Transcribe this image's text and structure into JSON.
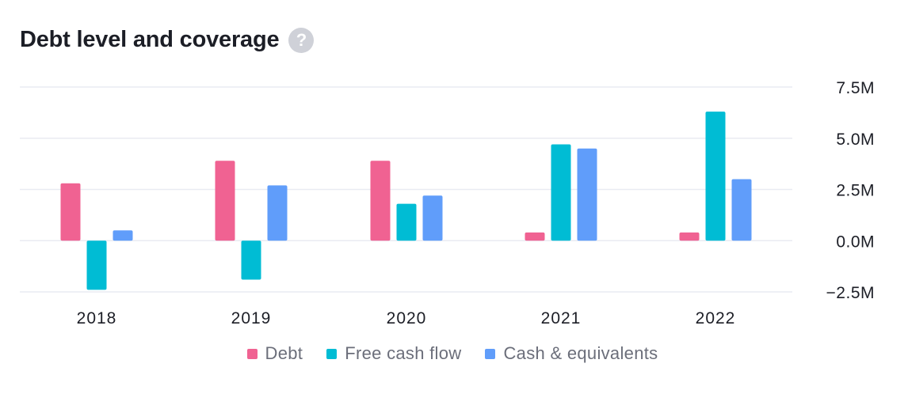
{
  "header": {
    "title": "Debt level and coverage",
    "help_icon_glyph": "?",
    "help_icon": "question-mark-icon"
  },
  "chart_data": {
    "type": "bar",
    "title": "Debt level and coverage",
    "categories": [
      "2018",
      "2019",
      "2020",
      "2021",
      "2022"
    ],
    "series": [
      {
        "name": "Debt",
        "color": "#f06292",
        "values": [
          2.8,
          3.9,
          3.9,
          0.4,
          0.4
        ]
      },
      {
        "name": "Free cash flow",
        "color": "#00bcd4",
        "values": [
          -2.4,
          -1.9,
          1.8,
          4.7,
          6.3
        ]
      },
      {
        "name": "Cash & equivalents",
        "color": "#609dfa",
        "values": [
          0.5,
          2.7,
          2.2,
          4.5,
          3.0
        ]
      }
    ],
    "y_ticks": [
      "7.5M",
      "5.0M",
      "2.5M",
      "0.0M",
      "−2.5M"
    ],
    "y_tick_values": [
      7.5,
      5.0,
      2.5,
      0.0,
      -2.5
    ],
    "ylim": [
      -2.5,
      7.5
    ],
    "y_unit": "M",
    "grid": true,
    "legend_position": "bottom"
  }
}
